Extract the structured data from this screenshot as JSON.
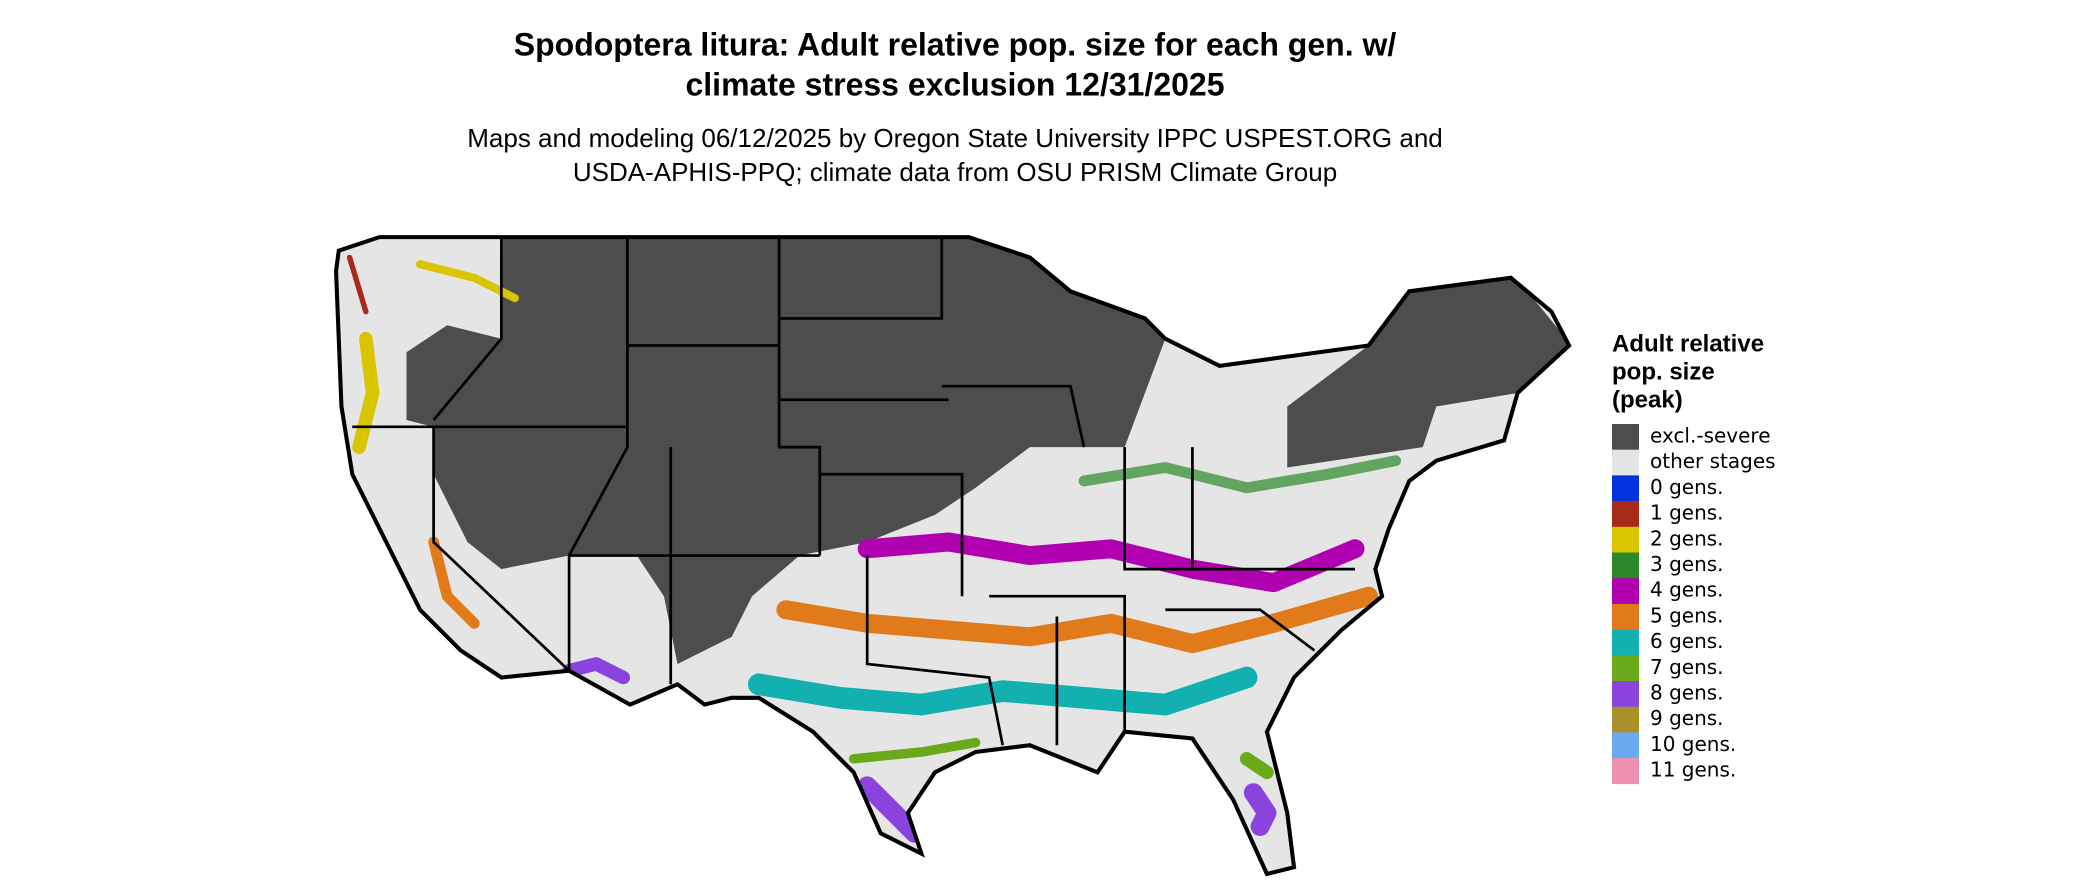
{
  "header": {
    "title": [
      "Spodoptera litura: Adult relative pop. size for each gen. w/",
      "climate stress exclusion 12/31/2025"
    ],
    "subtitle": [
      "Maps and modeling 06/12/2025 by Oregon State University IPPC USPEST.ORG and",
      "USDA-APHIS-PPQ; climate data from OSU PRISM Climate Group"
    ]
  },
  "legend": {
    "title": [
      "Adult relative",
      "pop. size",
      "(peak)"
    ],
    "items": [
      {
        "label": "excl.-severe",
        "color": "#4d4d4d"
      },
      {
        "label": "other stages",
        "color": "#e5e5e5"
      },
      {
        "label": "0 gens.",
        "color": "#0033dd"
      },
      {
        "label": "1 gens.",
        "color": "#aa2a1a"
      },
      {
        "label": "2 gens.",
        "color": "#d9c400"
      },
      {
        "label": "3 gens.",
        "color": "#2a8a2a"
      },
      {
        "label": "4 gens.",
        "color": "#b000b0"
      },
      {
        "label": "5 gens.",
        "color": "#e07a1a"
      },
      {
        "label": "6 gens.",
        "color": "#12b0b0"
      },
      {
        "label": "7 gens.",
        "color": "#6aaa1a"
      },
      {
        "label": "8 gens.",
        "color": "#8a44dd"
      },
      {
        "label": "9 gens.",
        "color": "#aa8f2a"
      },
      {
        "label": "10 gens.",
        "color": "#6aaaee"
      },
      {
        "label": "11 gens.",
        "color": "#ee90b0"
      }
    ]
  }
}
